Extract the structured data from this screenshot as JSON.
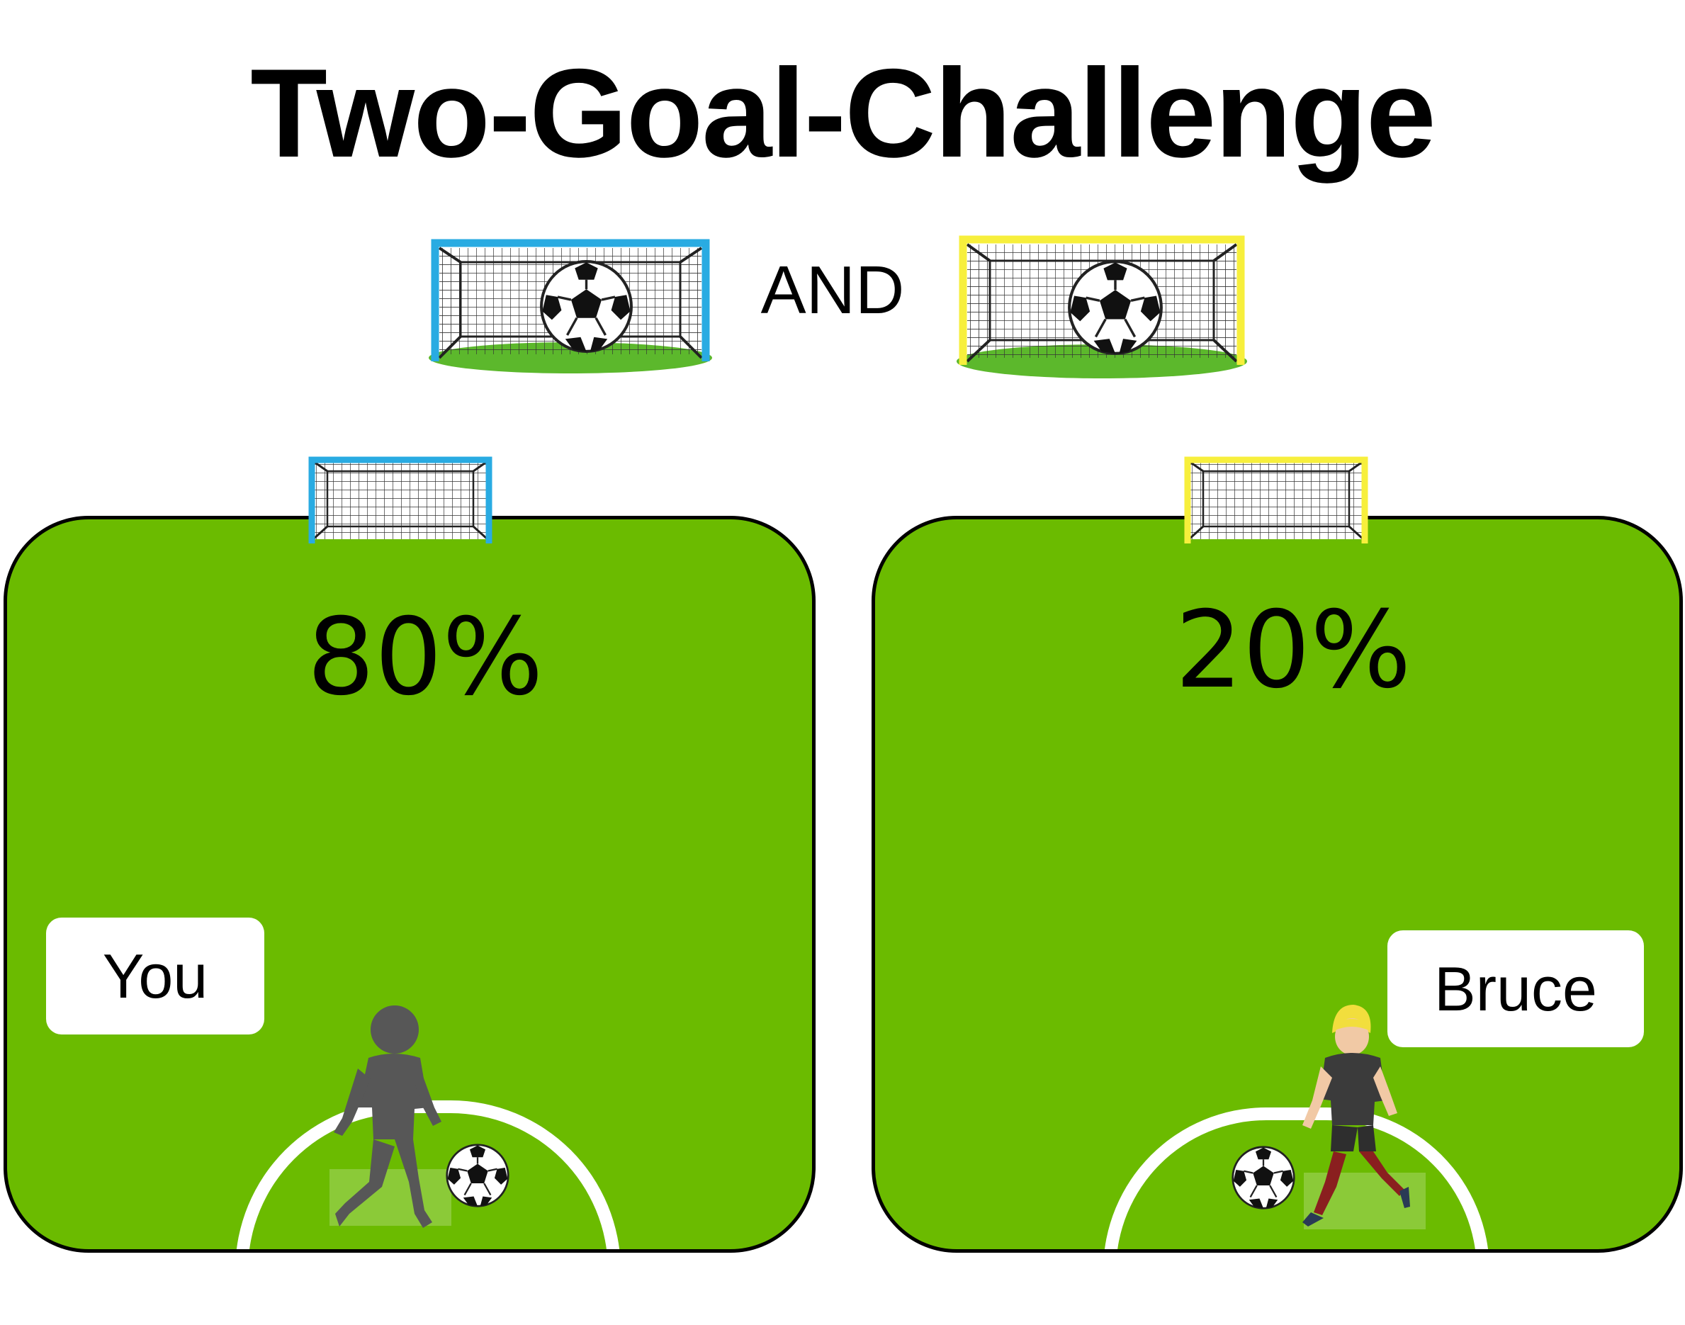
{
  "title": "Two-Goal-Challenge",
  "connector": "AND",
  "goals": {
    "first_color": "#29abe2",
    "second_color": "#f7ef3c",
    "grass_color": "#5cb82c"
  },
  "field_color": "#6bbb00",
  "left_panel": {
    "percent": "80%",
    "player_name": "You",
    "goal_color": "#29abe2",
    "player_style": "silhouette"
  },
  "right_panel": {
    "percent": "20%",
    "player_name": "Bruce",
    "goal_color": "#f7ef3c",
    "player_style": "blonde-kicker"
  }
}
